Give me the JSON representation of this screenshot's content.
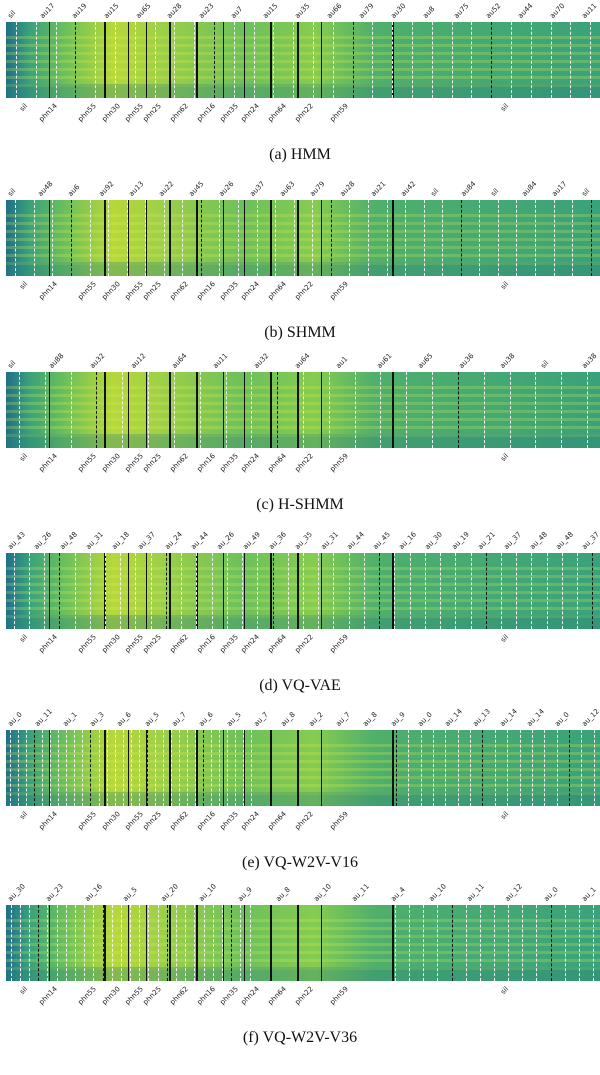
{
  "phone_labels": [
    "sil",
    "phn14",
    "phn55",
    "phn30",
    "phn55",
    "phn25",
    "phn62",
    "phn16",
    "phn35",
    "phn24",
    "phn64",
    "phn22",
    "phn59",
    "sil"
  ],
  "panels": [
    {
      "caption": "(a) HMM",
      "top_labels": [
        "sil",
        "au17",
        "au19",
        "au15",
        "au65",
        "au28",
        "au23",
        "au7",
        "au15",
        "au35",
        "au66",
        "au79",
        "au30",
        "au8",
        "au75",
        "au52",
        "au44",
        "au70",
        "au11"
      ]
    },
    {
      "caption": "(b) SHMM",
      "top_labels": [
        "sil",
        "au48",
        "au6",
        "au92",
        "au13",
        "au22",
        "au45",
        "au26",
        "au37",
        "au63",
        "au79",
        "au28",
        "au21",
        "au42",
        "sil",
        "au84",
        "sil",
        "au84",
        "au17",
        "sil"
      ]
    },
    {
      "caption": "(c) H-SHMM",
      "top_labels": [
        "sil",
        "au88",
        "au32",
        "au12",
        "au64",
        "au11",
        "au32",
        "au64",
        "au1",
        "au61",
        "au65",
        "au36",
        "au38",
        "sil",
        "au38"
      ]
    },
    {
      "caption": "(d) VQ-VAE",
      "top_labels": [
        "au_43",
        "au_26",
        "au_48",
        "au_31",
        "au_18",
        "au_37",
        "au_24",
        "au_44",
        "au_26",
        "au_49",
        "au_36",
        "au_35",
        "au_31",
        "au_44",
        "au_45",
        "au_16",
        "au_30",
        "au_19",
        "au_21",
        "au_37",
        "au_48",
        "au_48",
        "au_37"
      ]
    },
    {
      "caption": "(e) VQ-W2V-V16",
      "top_labels": [
        "au_0",
        "au_11",
        "au_1",
        "au_3",
        "au_6",
        "au_5",
        "au_7",
        "au_6",
        "au_5",
        "au_7",
        "au_8",
        "au_2",
        "au_7",
        "au_8",
        "au_9",
        "au_0",
        "au_14",
        "au_13",
        "au_14",
        "au_14",
        "au_0",
        "au_12"
      ]
    },
    {
      "caption": "(f) VQ-W2V-V36",
      "top_labels": [
        "au_30",
        "au_23",
        "au_16",
        "au_5",
        "au_20",
        "au_10",
        "au_9",
        "au_8",
        "au_10",
        "au_11",
        "au_4",
        "au_10",
        "au_11",
        "au_12",
        "au_0",
        "au_1"
      ]
    }
  ]
}
